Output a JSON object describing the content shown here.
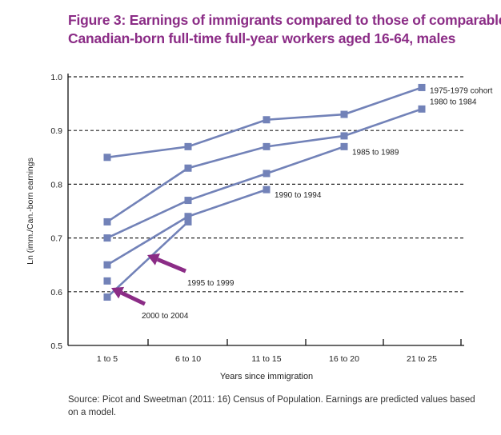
{
  "figure": {
    "title_line1": "Figure 3: Earnings of immigrants compared to those of comparable",
    "title_line2": "Canadian-born full-time full-year workers aged 16-64, males",
    "source": "Source: Picot and Sweetman (2011: 16) Census of Population. Earnings are predicted values based on a model."
  },
  "colors": {
    "title": "#8b2c86",
    "series": "#7282b8",
    "arrow": "#8b2c86",
    "axis": "#111111"
  },
  "chart_data": {
    "type": "line",
    "title": "Figure 3: Earnings of immigrants compared to those of comparable Canadian-born full-time full-year workers aged 16-64, males",
    "xlabel": "Years since immigration",
    "ylabel": "Ln (imm./Can.-born earnings",
    "categories": [
      "1 to 5",
      "6 to 10",
      "11 to 15",
      "16 to 20",
      "21 to 25"
    ],
    "ylim": [
      0.5,
      1.0
    ],
    "yticks": [
      "0.5",
      "0.6",
      "0.7",
      "0.8",
      "0.9",
      "1.0"
    ],
    "grid": "dashed horizontal",
    "series": [
      {
        "name": "1975-1979 cohort",
        "values": [
          0.85,
          0.87,
          0.92,
          0.93,
          0.98
        ]
      },
      {
        "name": "1980 to 1984",
        "values": [
          0.73,
          0.83,
          0.87,
          0.89,
          0.94
        ]
      },
      {
        "name": "1985 to 1989",
        "values": [
          0.7,
          0.77,
          0.82,
          0.87,
          null
        ]
      },
      {
        "name": "1990 to 1994",
        "values": [
          0.65,
          0.74,
          0.79,
          null,
          null
        ]
      },
      {
        "name": "1995 to 1999",
        "values": [
          0.62,
          null,
          null,
          null,
          null
        ]
      },
      {
        "name": "2000 to 2004",
        "values": [
          0.59,
          0.73,
          null,
          null,
          null
        ]
      }
    ],
    "annotations": [
      {
        "text": "1995 to 1999",
        "target_category": "1 to 5",
        "target_value": 0.68
      },
      {
        "text": "2000 to 2004",
        "target_category": "1 to 5",
        "target_value": 0.61
      }
    ]
  }
}
